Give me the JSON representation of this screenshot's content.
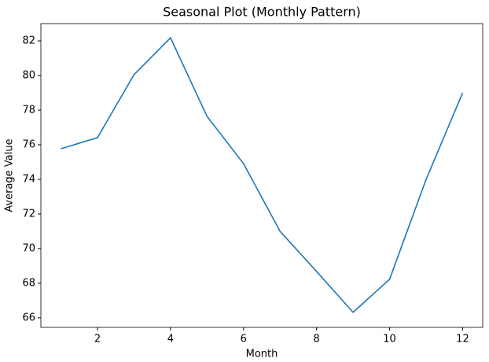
{
  "chart_data": {
    "type": "line",
    "title": "Seasonal Plot (Monthly Pattern)",
    "x_label": "Month",
    "y_label": "Average Value",
    "x": [
      1,
      2,
      3,
      4,
      5,
      6,
      7,
      8,
      9,
      10,
      11,
      12
    ],
    "series": [
      {
        "name": "Average Value",
        "color": "#1f77b4",
        "values": [
          75.77,
          76.41,
          80.05,
          82.18,
          77.64,
          74.91,
          71.0,
          68.68,
          66.32,
          68.23,
          74.0,
          79.0
        ]
      }
    ],
    "xlim": [
      0.45,
      12.55
    ],
    "xticks": [
      2,
      4,
      6,
      8,
      10,
      12
    ],
    "ylim": [
      65.45,
      83.0
    ],
    "yticks": [
      66,
      68,
      70,
      72,
      74,
      76,
      78,
      80,
      82
    ]
  }
}
